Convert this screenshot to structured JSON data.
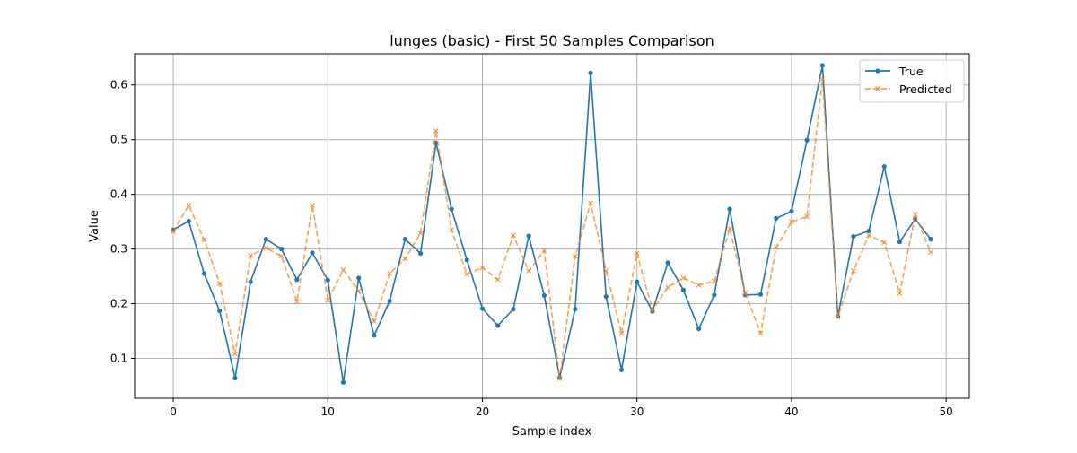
{
  "chart_data": {
    "type": "line",
    "title": "lunges (basic) - First 50 Samples Comparison",
    "xlabel": "Sample index",
    "ylabel": "Value",
    "xlim": [
      -2.5,
      51.5
    ],
    "ylim": [
      0.027,
      0.657
    ],
    "xticks": [
      0,
      10,
      20,
      30,
      40,
      50
    ],
    "yticks": [
      0.1,
      0.2,
      0.3,
      0.4,
      0.5,
      0.6
    ],
    "xtick_labels": [
      "0",
      "10",
      "20",
      "30",
      "40",
      "50"
    ],
    "ytick_labels": [
      "0.1",
      "0.2",
      "0.3",
      "0.4",
      "0.5",
      "0.6"
    ],
    "grid": true,
    "legend_position": "top-right",
    "x": [
      0,
      1,
      2,
      3,
      4,
      5,
      6,
      7,
      8,
      9,
      10,
      11,
      12,
      13,
      14,
      15,
      16,
      17,
      18,
      19,
      20,
      21,
      22,
      23,
      24,
      25,
      26,
      27,
      28,
      29,
      30,
      31,
      32,
      33,
      34,
      35,
      36,
      37,
      38,
      39,
      40,
      41,
      42,
      43,
      44,
      45,
      46,
      47,
      48,
      49
    ],
    "series": [
      {
        "name": "True",
        "color": "#1f77b4",
        "style": "solid",
        "marker": "dot",
        "values": [
          0.335,
          0.351,
          0.255,
          0.187,
          0.064,
          0.24,
          0.318,
          0.3,
          0.244,
          0.293,
          0.243,
          0.056,
          0.247,
          0.142,
          0.205,
          0.318,
          0.292,
          0.494,
          0.373,
          0.28,
          0.191,
          0.16,
          0.19,
          0.324,
          0.215,
          0.065,
          0.19,
          0.622,
          0.213,
          0.079,
          0.24,
          0.186,
          0.275,
          0.225,
          0.154,
          0.216,
          0.373,
          0.216,
          0.217,
          0.356,
          0.369,
          0.499,
          0.636,
          0.177,
          0.323,
          0.333,
          0.451,
          0.313,
          0.355,
          0.318
        ]
      },
      {
        "name": "Predicted",
        "color": "#ff7f0e",
        "style": "dashed",
        "marker": "x",
        "values": [
          0.332,
          0.38,
          0.317,
          0.237,
          0.108,
          0.288,
          0.302,
          0.287,
          0.204,
          0.38,
          0.206,
          0.262,
          0.223,
          0.168,
          0.255,
          0.282,
          0.329,
          0.516,
          0.335,
          0.254,
          0.266,
          0.244,
          0.325,
          0.26,
          0.297,
          0.063,
          0.287,
          0.384,
          0.26,
          0.146,
          0.292,
          0.188,
          0.23,
          0.247,
          0.234,
          0.241,
          0.337,
          0.22,
          0.146,
          0.303,
          0.35,
          0.359,
          0.611,
          0.176,
          0.26,
          0.325,
          0.312,
          0.219,
          0.363,
          0.294
        ]
      }
    ]
  }
}
